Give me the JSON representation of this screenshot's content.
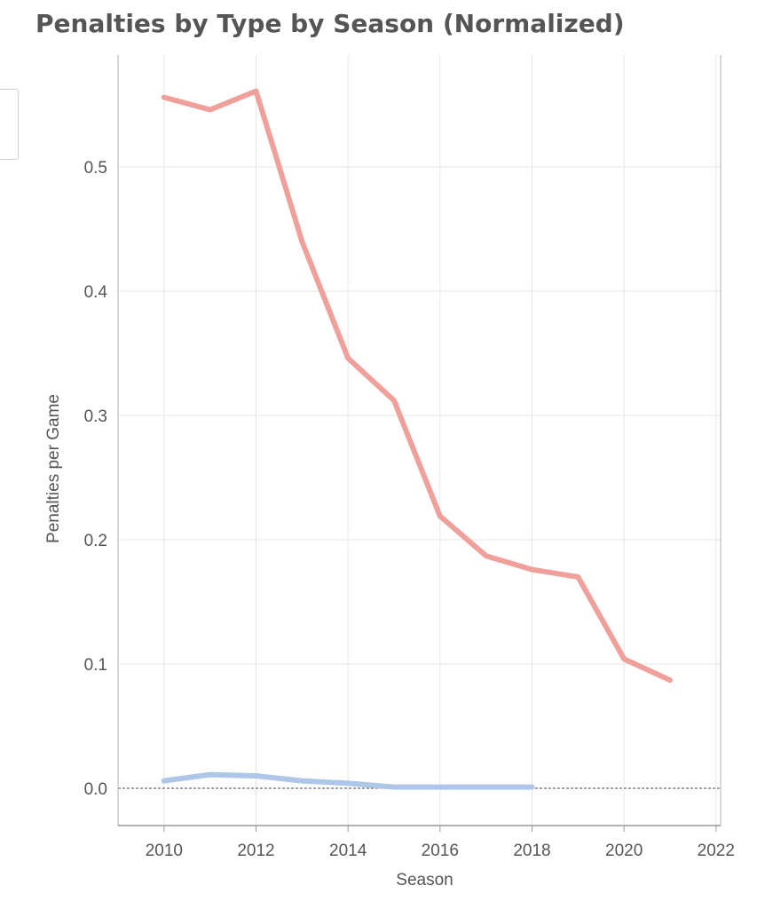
{
  "chart_data": {
    "type": "line",
    "title": "Penalties by Type by Season (Normalized)",
    "xlabel": "Season",
    "ylabel": "Penalties per Game",
    "xlim": [
      2009,
      2022.1
    ],
    "ylim": [
      -0.03,
      0.59
    ],
    "xticks": [
      2010,
      2012,
      2014,
      2016,
      2018,
      2020,
      2022
    ],
    "yticks": [
      0.0,
      0.1,
      0.2,
      0.3,
      0.4,
      0.5
    ],
    "ytick_labels": [
      "0.0",
      "0.1",
      "0.2",
      "0.3",
      "0.4",
      "0.5"
    ],
    "grid": true,
    "zero_line": "dashed",
    "series": [
      {
        "color": "#f0a09b",
        "x": [
          2010,
          2011,
          2012,
          2013,
          2014,
          2015,
          2016,
          2017,
          2018,
          2019,
          2020,
          2021
        ],
        "y": [
          0.556,
          0.546,
          0.561,
          0.44,
          0.346,
          0.312,
          0.219,
          0.187,
          0.176,
          0.17,
          0.104,
          0.087
        ]
      },
      {
        "color": "#aec6e8",
        "x": [
          2010,
          2011,
          2012,
          2013,
          2014,
          2015,
          2016,
          2017,
          2018
        ],
        "y": [
          0.006,
          0.011,
          0.01,
          0.006,
          0.004,
          0.001,
          0.001,
          0.001,
          0.001
        ]
      }
    ]
  }
}
